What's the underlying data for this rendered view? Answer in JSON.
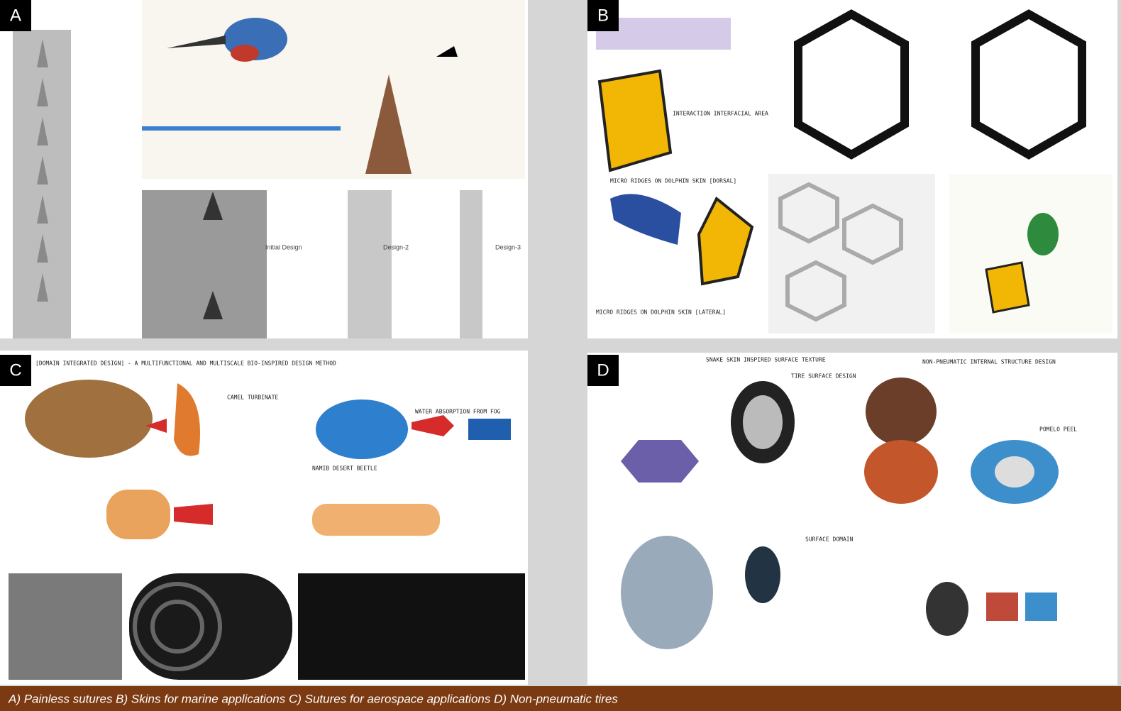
{
  "panels": [
    {
      "label": "A",
      "captions": [
        "Initial Design",
        "Design-2",
        "Design-3"
      ]
    },
    {
      "label": "B",
      "captions": [
        "INTERACTION INTERFACIAL AREA",
        "MICRO RIDGES ON DOLPHIN SKIN [DORSAL]",
        "MICRO RIDGES ON DOLPHIN SKIN [LATERAL]"
      ]
    },
    {
      "label": "C",
      "captions": [
        "[DOMAIN INTEGRATED DESIGN] - A MULTIFUNCTIONAL AND MULTISCALE BIO-INSPIRED DESIGN METHOD",
        "CAMEL TURBINATE",
        "NAMIB DESERT BEETLE",
        "WATER ABSORPTION FROM FOG"
      ]
    },
    {
      "label": "D",
      "captions": [
        "SNAKE SKIN INSPIRED SURFACE TEXTURE",
        "TIRE SURFACE DESIGN",
        "NON-PNEUMATIC INTERNAL STRUCTURE DESIGN",
        "SURFACE DOMAIN",
        "POMELO PEEL"
      ]
    }
  ],
  "caption": "A) Painless sutures B) Skins for marine applications C)  Sutures for aerospace applications D) Non-pneumatic tires"
}
